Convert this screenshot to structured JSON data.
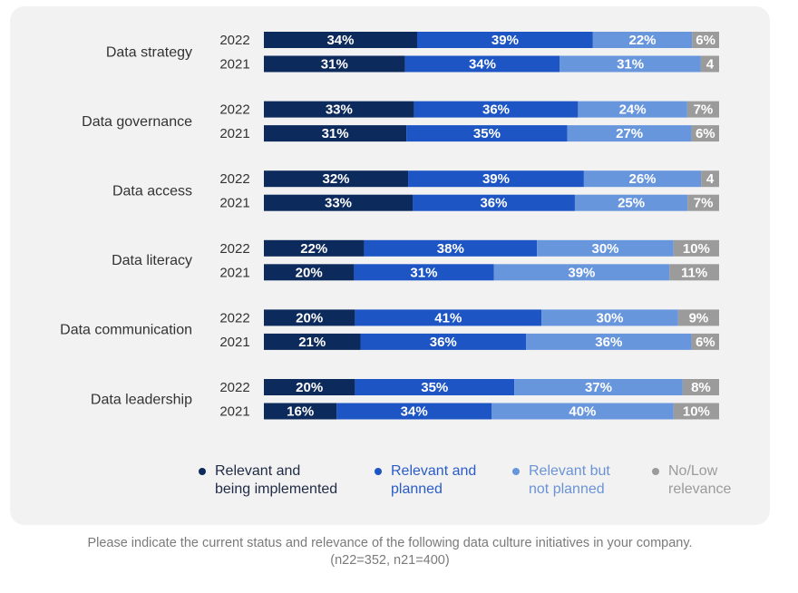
{
  "colors": {
    "implemented": "#0d2a5c",
    "planned": "#1d55c4",
    "not_planned": "#6896dd",
    "low": "#9b9b9b",
    "text": "#333333",
    "legend_text_dark": "#1f2a44",
    "legend_text_planned": "#2a5cc8",
    "legend_text_not_planned": "#6a93d6",
    "legend_text_low": "#9b9b9b"
  },
  "chart_data": {
    "type": "bar",
    "orientation": "horizontal",
    "stacked": true,
    "categories": [
      "Data strategy",
      "Data governance",
      "Data access",
      "Data literacy",
      "Data communication",
      "Data leadership"
    ],
    "years": [
      "2022",
      "2021"
    ],
    "series": [
      {
        "name": "Relevant and\nbeing implemented",
        "values": [
          [
            34,
            31
          ],
          [
            33,
            31
          ],
          [
            32,
            33
          ],
          [
            22,
            20
          ],
          [
            20,
            21
          ],
          [
            20,
            16
          ]
        ]
      },
      {
        "name": "Relevant and\nplanned",
        "values": [
          [
            39,
            34
          ],
          [
            36,
            35
          ],
          [
            39,
            36
          ],
          [
            38,
            31
          ],
          [
            41,
            36
          ],
          [
            35,
            34
          ]
        ]
      },
      {
        "name": "Relevant but\nnot planned",
        "values": [
          [
            22,
            31
          ],
          [
            24,
            27
          ],
          [
            26,
            25
          ],
          [
            30,
            39
          ],
          [
            30,
            36
          ],
          [
            37,
            40
          ]
        ]
      },
      {
        "name": "No/Low\nrelevance",
        "values": [
          [
            6,
            4
          ],
          [
            7,
            6
          ],
          [
            4,
            7
          ],
          [
            10,
            11
          ],
          [
            9,
            6
          ],
          [
            8,
            10
          ]
        ]
      }
    ],
    "labels": [
      [
        [
          "34%",
          "39%",
          "22%",
          "6%"
        ],
        [
          "31%",
          "34%",
          "31%",
          "4"
        ]
      ],
      [
        [
          "33%",
          "36%",
          "24%",
          "7%"
        ],
        [
          "31%",
          "35%",
          "27%",
          "6%"
        ]
      ],
      [
        [
          "32%",
          "39%",
          "26%",
          "4"
        ],
        [
          "33%",
          "36%",
          "25%",
          "7%"
        ]
      ],
      [
        [
          "22%",
          "38%",
          "30%",
          "10%"
        ],
        [
          "20%",
          "31%",
          "39%",
          "11%"
        ]
      ],
      [
        [
          "20%",
          "41%",
          "30%",
          "9%"
        ],
        [
          "21%",
          "36%",
          "36%",
          "6%"
        ]
      ],
      [
        [
          "20%",
          "35%",
          "37%",
          "8%"
        ],
        [
          "16%",
          "34%",
          "40%",
          "10%"
        ]
      ]
    ],
    "xlim": [
      0,
      100
    ],
    "legend_position": "bottom"
  },
  "footnote": {
    "line1": "Please indicate the current status and relevance of the following data culture initiatives in your company.",
    "line2": "(n22=352, n21=400)"
  }
}
